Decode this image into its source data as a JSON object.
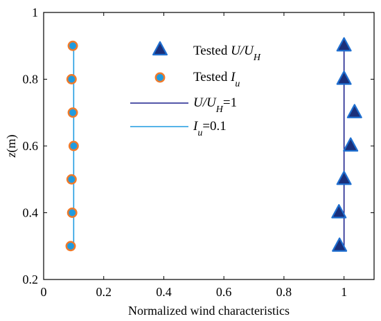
{
  "chart_data": {
    "type": "scatter",
    "xlabel": "Normalized wind characteristics",
    "ylabel_var": "z",
    "ylabel_unit": "(m)",
    "xlim": [
      0,
      1.1
    ],
    "ylim": [
      0.2,
      1.0
    ],
    "x_ticks": [
      "0",
      "0.2",
      "0.4",
      "0.6",
      "0.8",
      "1"
    ],
    "x_tick_values": [
      0,
      0.2,
      0.4,
      0.6,
      0.8,
      1.0
    ],
    "y_ticks": [
      "0.2",
      "0.4",
      "0.6",
      "0.8",
      "1"
    ],
    "y_tick_values": [
      0.2,
      0.4,
      0.6,
      0.8,
      1.0
    ],
    "grid": false,
    "legend_position": "top-center",
    "series": [
      {
        "name": "Tested U/U_H",
        "legend_prefix": "Tested ",
        "legend_var": "U/U",
        "legend_sub": "H",
        "marker": "triangle",
        "color": "#1a2f7a",
        "edge_color": "#1f6fd0",
        "points": [
          {
            "x": 0.985,
            "y": 0.3
          },
          {
            "x": 0.983,
            "y": 0.4
          },
          {
            "x": 1.0,
            "y": 0.5
          },
          {
            "x": 1.022,
            "y": 0.6
          },
          {
            "x": 1.035,
            "y": 0.7
          },
          {
            "x": 1.0,
            "y": 0.8
          },
          {
            "x": 1.0,
            "y": 0.9
          }
        ]
      },
      {
        "name": "Tested I_u",
        "legend_prefix": "Tested ",
        "legend_var": "I",
        "legend_sub": "u",
        "marker": "circle",
        "color": "#1f9be0",
        "edge_color": "#f07a2a",
        "points": [
          {
            "x": 0.09,
            "y": 0.3
          },
          {
            "x": 0.095,
            "y": 0.4
          },
          {
            "x": 0.093,
            "y": 0.5
          },
          {
            "x": 0.1,
            "y": 0.6
          },
          {
            "x": 0.097,
            "y": 0.7
          },
          {
            "x": 0.093,
            "y": 0.8
          },
          {
            "x": 0.097,
            "y": 0.9
          }
        ]
      }
    ],
    "reference_lines": [
      {
        "name": "U/U_H=1",
        "legend_var": "U/U",
        "legend_sub": "H",
        "legend_suffix": "=1",
        "color": "#1a1f8c",
        "x": 1.0,
        "y_range": [
          0.3,
          0.9
        ]
      },
      {
        "name": "I_u=0.1",
        "legend_var": "I",
        "legend_sub": "u",
        "legend_suffix": "=0.1",
        "color": "#1f9be0",
        "x": 0.1,
        "y_range": [
          0.3,
          0.9
        ]
      }
    ]
  }
}
